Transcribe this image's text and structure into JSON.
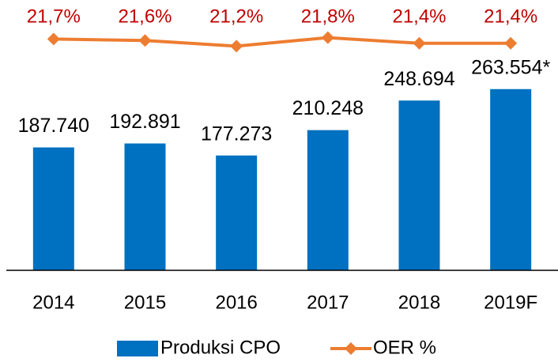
{
  "chart_data": {
    "type": "bar",
    "categories": [
      "2014",
      "2015",
      "2016",
      "2017",
      "2018",
      "2019F"
    ],
    "series": [
      {
        "name": "Produksi CPO",
        "type": "bar",
        "color": "#0070c0",
        "values": [
          187740,
          192891,
          177273,
          210248,
          248694,
          263554
        ],
        "value_labels": [
          "187.740",
          "192.891",
          "177.273",
          "210.248",
          "248.694",
          "263.554*"
        ]
      },
      {
        "name": "OER %",
        "type": "line",
        "axis": "y2",
        "color": "#ed7d31",
        "label_color": "#c00000",
        "values": [
          21.7,
          21.6,
          21.2,
          21.8,
          21.4,
          21.4
        ],
        "value_labels": [
          "21,7%",
          "21,6%",
          "21,2%",
          "21,8%",
          "21,4%",
          "21,4%"
        ]
      }
    ],
    "ylim": [
      28000,
      290000
    ],
    "y2lim": [
      20,
      22
    ],
    "legend": "bottom"
  }
}
